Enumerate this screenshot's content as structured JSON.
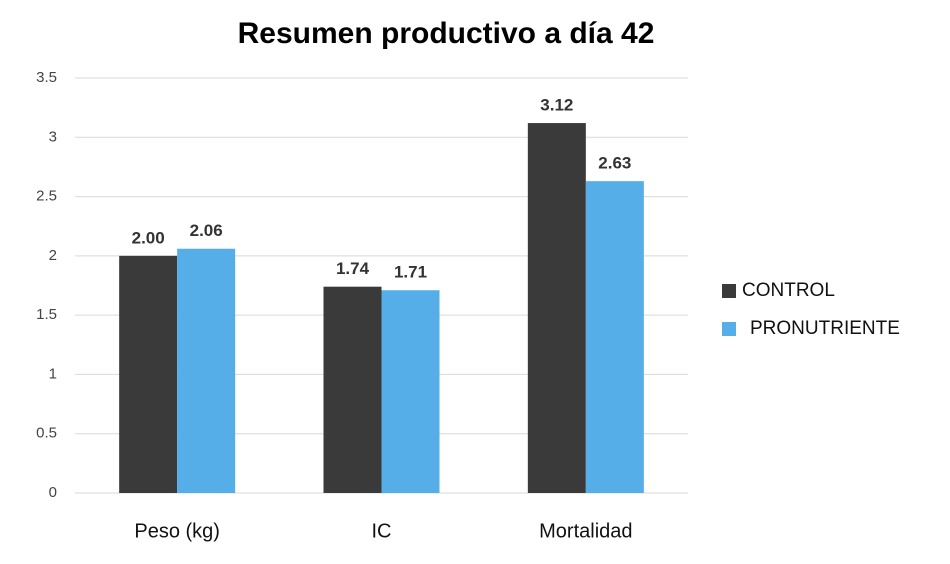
{
  "chart_data": {
    "type": "bar",
    "title": "Resumen productivo a día 42",
    "categories": [
      "Peso (kg)",
      "IC",
      "Mortalidad"
    ],
    "series": [
      {
        "name": "CONTROL",
        "color": "#3a3a3a",
        "values": [
          2.0,
          1.74,
          3.12
        ],
        "value_labels": [
          "2.00",
          "1.74",
          "3.12"
        ]
      },
      {
        "name": "PRONUTRIENTE",
        "color": "#55aee8",
        "values": [
          2.06,
          1.71,
          2.63
        ],
        "value_labels": [
          "2.06",
          "1.71",
          "2.63"
        ]
      }
    ],
    "ylim": [
      0,
      3.5
    ],
    "yticks": [
      0,
      0.5,
      1,
      1.5,
      2,
      2.5,
      3,
      3.5
    ],
    "grid": true,
    "legend": "right"
  }
}
